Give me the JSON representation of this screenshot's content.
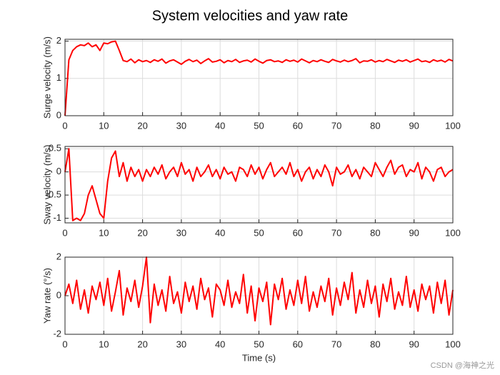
{
  "chart_data": [
    {
      "type": "line",
      "title": "System velocities and yaw rate",
      "ylabel": "Surge velocity (m/s)",
      "color": "#ff0000",
      "grid": true,
      "xlim": [
        0,
        100
      ],
      "xticks": [
        0,
        10,
        20,
        30,
        40,
        50,
        60,
        70,
        80,
        90,
        100
      ],
      "ylim": [
        0,
        2.05
      ],
      "yticks": [
        0,
        1,
        2
      ],
      "x": [
        0,
        1,
        2,
        3,
        4,
        5,
        6,
        7,
        8,
        9,
        10,
        11,
        12,
        13,
        14,
        15,
        16,
        17,
        18,
        19,
        20,
        21,
        22,
        23,
        24,
        25,
        26,
        27,
        28,
        29,
        30,
        31,
        32,
        33,
        34,
        35,
        36,
        37,
        38,
        39,
        40,
        41,
        42,
        43,
        44,
        45,
        46,
        47,
        48,
        49,
        50,
        51,
        52,
        53,
        54,
        55,
        56,
        57,
        58,
        59,
        60,
        61,
        62,
        63,
        64,
        65,
        66,
        67,
        68,
        69,
        70,
        71,
        72,
        73,
        74,
        75,
        76,
        77,
        78,
        79,
        80,
        81,
        82,
        83,
        84,
        85,
        86,
        87,
        88,
        89,
        90,
        91,
        92,
        93,
        94,
        95,
        96,
        97,
        98,
        99,
        100
      ],
      "values": [
        0,
        1.5,
        1.75,
        1.85,
        1.9,
        1.88,
        1.95,
        1.85,
        1.9,
        1.75,
        1.95,
        1.93,
        1.98,
        2.0,
        1.75,
        1.48,
        1.45,
        1.52,
        1.42,
        1.5,
        1.45,
        1.48,
        1.43,
        1.5,
        1.46,
        1.52,
        1.41,
        1.47,
        1.5,
        1.44,
        1.38,
        1.46,
        1.51,
        1.45,
        1.49,
        1.4,
        1.47,
        1.53,
        1.44,
        1.46,
        1.5,
        1.42,
        1.48,
        1.45,
        1.51,
        1.43,
        1.47,
        1.49,
        1.44,
        1.52,
        1.46,
        1.41,
        1.48,
        1.5,
        1.45,
        1.47,
        1.43,
        1.5,
        1.46,
        1.49,
        1.44,
        1.52,
        1.47,
        1.42,
        1.48,
        1.45,
        1.5,
        1.46,
        1.43,
        1.51,
        1.47,
        1.44,
        1.49,
        1.45,
        1.48,
        1.53,
        1.42,
        1.47,
        1.46,
        1.5,
        1.44,
        1.48,
        1.45,
        1.51,
        1.47,
        1.43,
        1.49,
        1.46,
        1.5,
        1.44,
        1.48,
        1.52,
        1.45,
        1.47,
        1.43,
        1.5,
        1.46,
        1.49,
        1.44,
        1.51,
        1.47
      ]
    },
    {
      "type": "line",
      "ylabel": "Sway velocity (m/s)",
      "color": "#ff0000",
      "grid": true,
      "xlim": [
        0,
        100
      ],
      "xticks": [
        0,
        10,
        20,
        30,
        40,
        50,
        60,
        70,
        80,
        90,
        100
      ],
      "ylim": [
        -1.1,
        0.55
      ],
      "yticks": [
        -1,
        -0.5,
        0,
        0.5
      ],
      "x": [
        0,
        1,
        2,
        3,
        4,
        5,
        6,
        7,
        8,
        9,
        10,
        11,
        12,
        13,
        14,
        15,
        16,
        17,
        18,
        19,
        20,
        21,
        22,
        23,
        24,
        25,
        26,
        27,
        28,
        29,
        30,
        31,
        32,
        33,
        34,
        35,
        36,
        37,
        38,
        39,
        40,
        41,
        42,
        43,
        44,
        45,
        46,
        47,
        48,
        49,
        50,
        51,
        52,
        53,
        54,
        55,
        56,
        57,
        58,
        59,
        60,
        61,
        62,
        63,
        64,
        65,
        66,
        67,
        68,
        69,
        70,
        71,
        72,
        73,
        74,
        75,
        76,
        77,
        78,
        79,
        80,
        81,
        82,
        83,
        84,
        85,
        86,
        87,
        88,
        89,
        90,
        91,
        92,
        93,
        94,
        95,
        96,
        97,
        98,
        99,
        100
      ],
      "values": [
        0,
        0.5,
        -1.05,
        -1.0,
        -1.05,
        -0.9,
        -0.5,
        -0.3,
        -0.6,
        -0.9,
        -1.0,
        -0.2,
        0.3,
        0.45,
        -0.1,
        0.2,
        -0.2,
        0.1,
        -0.1,
        0.05,
        -0.2,
        0.05,
        -0.1,
        0.1,
        -0.05,
        0.15,
        -0.15,
        0.0,
        0.1,
        -0.1,
        0.2,
        -0.05,
        0.05,
        -0.2,
        0.1,
        -0.1,
        0.0,
        0.15,
        -0.1,
        0.05,
        -0.15,
        0.1,
        -0.05,
        0.0,
        -0.2,
        0.1,
        0.05,
        -0.1,
        0.15,
        -0.05,
        0.1,
        -0.15,
        0.05,
        0.2,
        -0.1,
        0.0,
        0.1,
        -0.05,
        0.2,
        -0.1,
        0.05,
        -0.2,
        0.0,
        0.1,
        -0.15,
        0.05,
        -0.1,
        0.15,
        0.0,
        -0.3,
        0.1,
        -0.05,
        0.0,
        0.15,
        -0.1,
        0.05,
        -0.15,
        0.1,
        0.0,
        -0.1,
        0.2,
        0.05,
        -0.1,
        0.1,
        0.25,
        -0.05,
        0.1,
        0.15,
        -0.1,
        0.05,
        0.0,
        0.2,
        -0.15,
        0.1,
        0.0,
        -0.2,
        0.05,
        0.1,
        -0.1,
        0.0,
        0.05
      ]
    },
    {
      "type": "line",
      "ylabel": "Yaw rate (°/s)",
      "xlabel": "Time (s)",
      "color": "#ff0000",
      "grid": true,
      "xlim": [
        0,
        100
      ],
      "xticks": [
        0,
        10,
        20,
        30,
        40,
        50,
        60,
        70,
        80,
        90,
        100
      ],
      "ylim": [
        -2,
        2
      ],
      "yticks": [
        -2,
        0,
        2
      ],
      "x": [
        0,
        1,
        2,
        3,
        4,
        5,
        6,
        7,
        8,
        9,
        10,
        11,
        12,
        13,
        14,
        15,
        16,
        17,
        18,
        19,
        20,
        21,
        22,
        23,
        24,
        25,
        26,
        27,
        28,
        29,
        30,
        31,
        32,
        33,
        34,
        35,
        36,
        37,
        38,
        39,
        40,
        41,
        42,
        43,
        44,
        45,
        46,
        47,
        48,
        49,
        50,
        51,
        52,
        53,
        54,
        55,
        56,
        57,
        58,
        59,
        60,
        61,
        62,
        63,
        64,
        65,
        66,
        67,
        68,
        69,
        70,
        71,
        72,
        73,
        74,
        75,
        76,
        77,
        78,
        79,
        80,
        81,
        82,
        83,
        84,
        85,
        86,
        87,
        88,
        89,
        90,
        91,
        92,
        93,
        94,
        95,
        96,
        97,
        98,
        99,
        100
      ],
      "values": [
        0,
        0.6,
        -0.4,
        0.8,
        -0.7,
        0.3,
        -0.9,
        0.5,
        -0.2,
        0.7,
        -0.5,
        0.9,
        -0.8,
        0.2,
        1.3,
        -1.0,
        0.4,
        -0.3,
        0.8,
        -0.6,
        0.5,
        2.0,
        -1.4,
        0.6,
        -0.5,
        0.3,
        -0.8,
        1.0,
        -0.4,
        0.2,
        -0.9,
        0.7,
        -0.3,
        0.5,
        -0.7,
        0.9,
        -0.2,
        0.4,
        -1.1,
        0.6,
        0.3,
        -0.5,
        0.8,
        -0.6,
        0.2,
        -0.4,
        1.1,
        -0.9,
        0.5,
        -1.3,
        0.4,
        -0.3,
        0.7,
        -1.5,
        0.6,
        -0.2,
        0.9,
        -0.7,
        0.3,
        -0.5,
        0.8,
        -0.4,
        1.0,
        -0.8,
        0.2,
        -0.6,
        0.5,
        -0.3,
        0.9,
        -1.0,
        0.4,
        -0.5,
        0.7,
        -0.2,
        1.2,
        -0.9,
        0.3,
        -0.6,
        0.8,
        -0.4,
        0.5,
        -1.1,
        0.6,
        -0.3,
        0.9,
        -0.7,
        0.2,
        -0.5,
        1.0,
        -0.6,
        0.3,
        -0.8,
        0.6,
        -0.2,
        0.5,
        -0.9,
        0.7,
        -0.4,
        0.8,
        -1.0,
        0.3
      ]
    }
  ],
  "watermark": "CSDN @海神之光"
}
